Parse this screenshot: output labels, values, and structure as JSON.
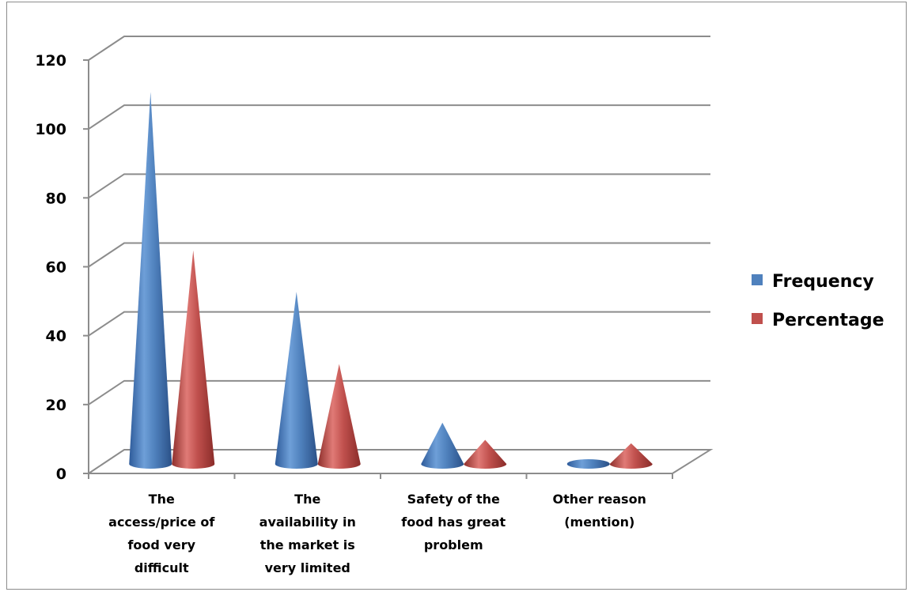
{
  "chart_data": {
    "type": "bar",
    "style": "3d-cone",
    "categories": [
      [
        "The",
        "access/price of",
        "food very",
        "difficult"
      ],
      [
        "The",
        "availability in",
        "the market is",
        "very limited"
      ],
      [
        "Safety of the",
        "food has great",
        "problem"
      ],
      [
        "Other reason",
        "(mention)"
      ]
    ],
    "series": [
      {
        "name": "Frequency",
        "color": "#4f81bd",
        "values": [
          108,
          50,
          12,
          0
        ]
      },
      {
        "name": "Percentage",
        "color": "#c0504d",
        "values": [
          62,
          29,
          7,
          6
        ]
      }
    ],
    "yticks": [
      "0",
      "20",
      "40",
      "60",
      "80",
      "100",
      "120"
    ],
    "ylim": [
      0,
      120
    ],
    "grid": true,
    "legend_position": "right"
  }
}
